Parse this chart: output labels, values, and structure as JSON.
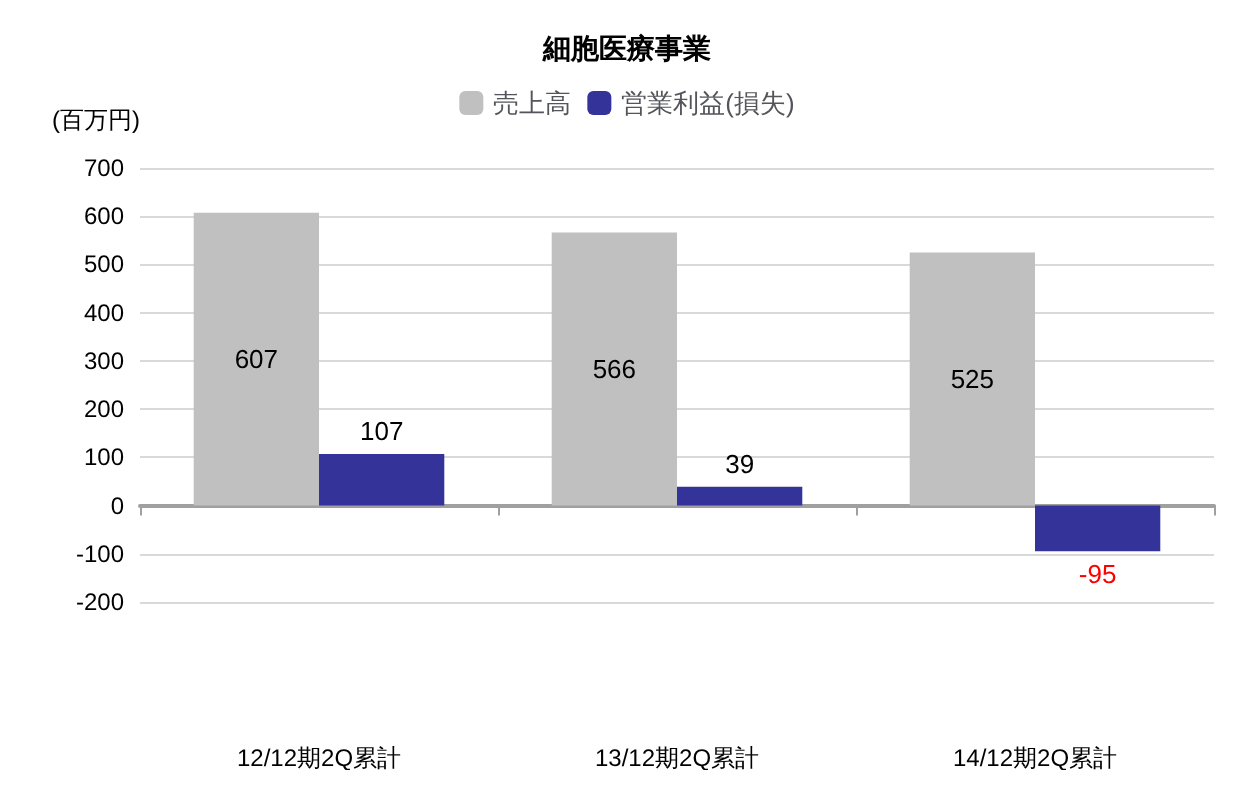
{
  "chart_data": {
    "type": "bar",
    "title": "細胞医療事業",
    "ylabel": "(百万円)",
    "categories": [
      "12/12期2Q累計",
      "13/12期2Q累計",
      "14/12期2Q累計"
    ],
    "series": [
      {
        "name": "売上高",
        "color": "#c0c0c0",
        "values": [
          607,
          566,
          525
        ]
      },
      {
        "name": "営業利益(損失)",
        "color": "#333399",
        "values": [
          107,
          39,
          -95
        ]
      }
    ],
    "ylim": [
      -200,
      700
    ],
    "yticks": [
      -200,
      -100,
      0,
      100,
      200,
      300,
      400,
      500,
      600,
      700
    ],
    "grid": "y",
    "legend": "top",
    "data_labels": true
  }
}
